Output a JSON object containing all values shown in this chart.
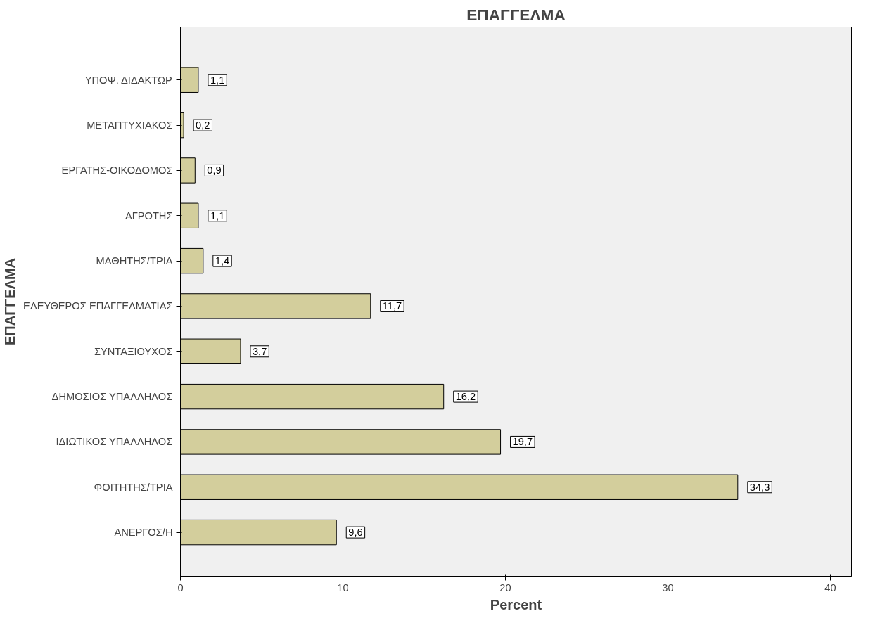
{
  "chart_data": {
    "type": "bar",
    "orientation": "horizontal",
    "title": "ΕΠΑΓΓΕΛΜΑ",
    "xlabel": "Percent",
    "ylabel": "ΕΠΑΓΓΕΛΜΑ",
    "categories": [
      "ΥΠΟΨ. ΔΙΔΑΚΤΩΡ",
      "ΜΕΤΑΠΤΥΧΙΑΚΟΣ",
      "ΕΡΓΑΤΗΣ-ΟΙΚΟΔΟΜΟΣ",
      "ΑΓΡΟΤΗΣ",
      "ΜΑΘΗΤΗΣ/ΤΡΙΑ",
      "ΕΛΕΥΘΕΡΟΣ ΕΠΑΓΓΕΛΜΑΤΙΑΣ",
      "ΣΥΝΤΑΞΙΟΥΧΟΣ",
      "ΔΗΜΟΣΙΟΣ ΥΠΑΛΛΗΛΟΣ",
      "ΙΔΙΩΤΙΚΟΣ ΥΠΑΛΛΗΛΟΣ",
      "ΦΟΙΤΗΤΗΣ/ΤΡΙΑ",
      "ΑΝΕΡΓΟΣ/Η"
    ],
    "values": [
      1.1,
      0.2,
      0.9,
      1.1,
      1.4,
      11.7,
      3.7,
      16.2,
      19.7,
      34.3,
      9.6
    ],
    "value_labels": [
      "1,1",
      "0,2",
      "0,9",
      "1,1",
      "1,4",
      "11,7",
      "3,7",
      "16,2",
      "19,7",
      "34,3",
      "9,6"
    ],
    "color": "#d3ce9c",
    "xlim": [
      0,
      41.3
    ],
    "xticks": [
      0,
      10,
      20,
      30,
      40
    ],
    "grid": false
  }
}
